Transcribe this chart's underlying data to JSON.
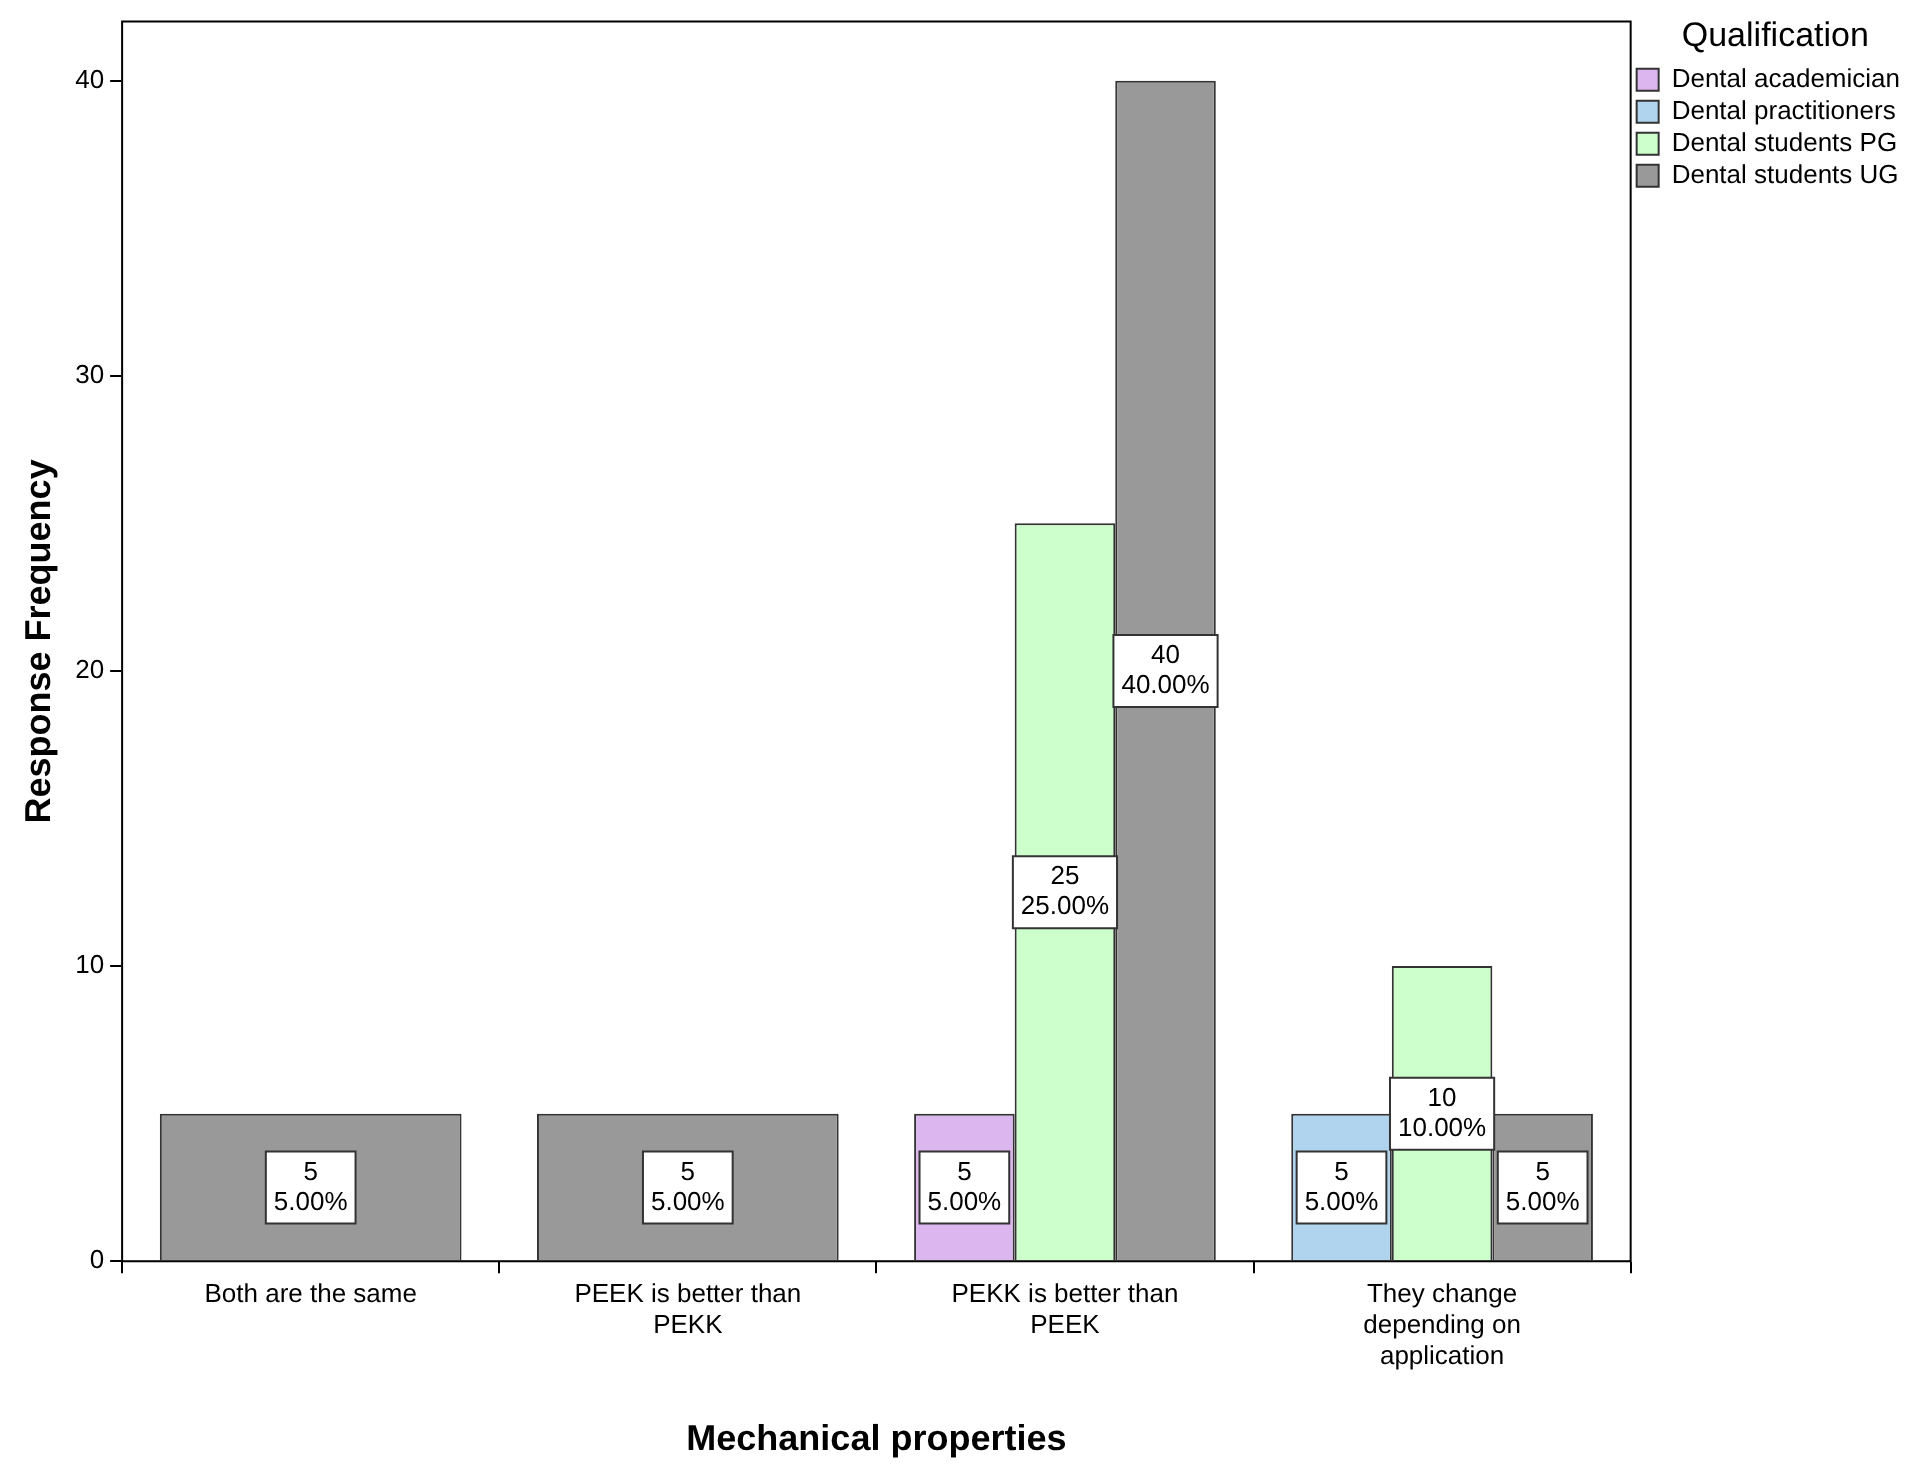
{
  "chart_data": {
    "type": "bar",
    "xlabel": "Mechanical properties",
    "ylabel": "Response Frequency",
    "legend_title": "Qualification",
    "legend": "top right",
    "grid": false,
    "categories": [
      "Both are the same",
      "PEEK is better than PEKK",
      "PEKK is better than PEEK",
      "They change depending on application"
    ],
    "ylim": [
      0,
      42
    ],
    "yticks": [
      0,
      10,
      20,
      30,
      40
    ],
    "series": [
      {
        "name": "Dental academician",
        "color": "#dcb6ee",
        "values": [
          null,
          null,
          5,
          null
        ],
        "value_labels": [
          null,
          null,
          "5\n5.00%",
          null
        ]
      },
      {
        "name": "Dental practitioners",
        "color": "#b0d3ee",
        "values": [
          null,
          null,
          null,
          5
        ],
        "value_labels": [
          null,
          null,
          null,
          "5\n5.00%"
        ]
      },
      {
        "name": "Dental students PG",
        "color": "#ccffcc",
        "values": [
          null,
          null,
          25,
          10
        ],
        "value_labels": [
          null,
          null,
          "25\n25.00%",
          "10\n10.00%"
        ]
      },
      {
        "name": "Dental students UG",
        "color": "#999999",
        "values": [
          5,
          5,
          40,
          5
        ],
        "value_labels": [
          "5\n5.00%",
          "5\n5.00%",
          "40\n40.00%",
          "5\n5.00%"
        ]
      }
    ]
  }
}
